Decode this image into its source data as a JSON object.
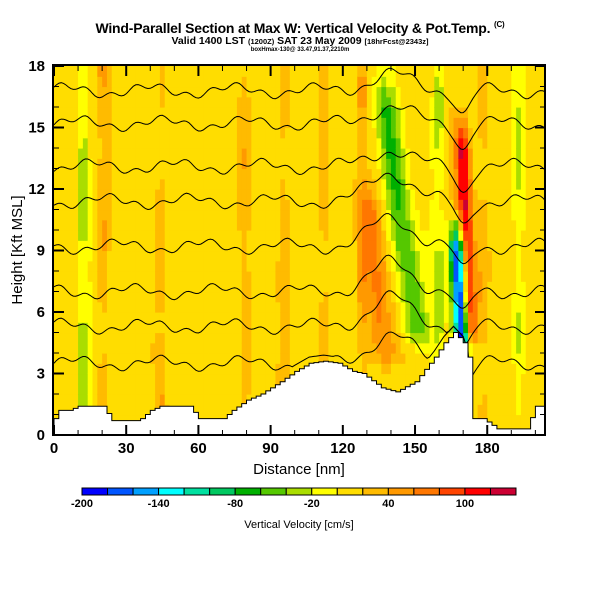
{
  "title": {
    "main": "Wind-Parallel Section at Max W: Vertical Velocity & Pot.Temp.",
    "copyright": "(C)",
    "valid_prefix": "Valid 1400 LST",
    "valid_z": "(1200Z)",
    "valid_date": "SAT 23 May 2009",
    "forecast": "[18hrFcst@2343z]",
    "subline": "boxHmax-130@ 33.47,91.37,2210m"
  },
  "chart_data": {
    "type": "heatmap",
    "title": "Wind-Parallel Section at Max W: Vertical Velocity & Pot.Temp.",
    "xlabel": "Distance [nm]",
    "ylabel": "Height [Kft MSL]",
    "xlim": [
      0,
      204
    ],
    "ylim": [
      0,
      18
    ],
    "x_ticks": [
      "0",
      "30",
      "60",
      "90",
      "120",
      "150",
      "180"
    ],
    "y_ticks": [
      "0",
      "3",
      "6",
      "9",
      "12",
      "15",
      "18"
    ],
    "x_tick_values": [
      0,
      30,
      60,
      90,
      120,
      150,
      180
    ],
    "y_tick_values": [
      0,
      3,
      6,
      9,
      12,
      15,
      18
    ],
    "colorbar": {
      "title": "Vertical Velocity [cm/s]",
      "min": -200,
      "max": 140,
      "step": 20,
      "labels": [
        "-200",
        "-140",
        "-80",
        "-20",
        "40",
        "100"
      ],
      "label_values": [
        -200,
        -140,
        -80,
        -20,
        40,
        100
      ],
      "colors": [
        "#0000ff",
        "#0055ff",
        "#00a0ff",
        "#00ffff",
        "#00e0a0",
        "#00c860",
        "#00b000",
        "#55c800",
        "#aadd00",
        "#ffff00",
        "#ffdd00",
        "#ffbb00",
        "#ff9900",
        "#ff7700",
        "#ff4400",
        "#ff0000",
        "#cc0033"
      ]
    },
    "background_value_cm_s": 10,
    "features": [
      {
        "name": "strong-updraft",
        "distance_nm": 172,
        "max_cm_s": 120,
        "height_range_kft": [
          5,
          14
        ]
      },
      {
        "name": "strong-downdraft",
        "distance_nm": 168,
        "min_cm_s": -200,
        "height_range_kft": [
          4.5,
          9
        ]
      },
      {
        "name": "downdraft-band",
        "distance_nm": 145,
        "min_cm_s": -60,
        "height_range_kft": [
          5,
          16
        ]
      },
      {
        "name": "updraft-band",
        "distance_nm": 135,
        "max_cm_s": 60,
        "height_range_kft": [
          4,
          11
        ]
      }
    ],
    "terrain_top_kft": [
      [
        0,
        0.8
      ],
      [
        2,
        1.2
      ],
      [
        6,
        1.2
      ],
      [
        10,
        1.4
      ],
      [
        20,
        1.4
      ],
      [
        24,
        0.7
      ],
      [
        35,
        0.7
      ],
      [
        40,
        1.2
      ],
      [
        44,
        1.4
      ],
      [
        56,
        1.4
      ],
      [
        60,
        0.8
      ],
      [
        70,
        0.8
      ],
      [
        74,
        1.2
      ],
      [
        80,
        1.7
      ],
      [
        86,
        2.0
      ],
      [
        94,
        2.6
      ],
      [
        100,
        3.1
      ],
      [
        106,
        3.5
      ],
      [
        112,
        3.6
      ],
      [
        118,
        3.5
      ],
      [
        124,
        3.1
      ],
      [
        128,
        3.0
      ],
      [
        136,
        2.3
      ],
      [
        142,
        2.1
      ],
      [
        150,
        2.6
      ],
      [
        154,
        3.2
      ],
      [
        158,
        3.8
      ],
      [
        162,
        4.5
      ],
      [
        166,
        5.0
      ],
      [
        170,
        4.5
      ],
      [
        172,
        3.8
      ],
      [
        174,
        0.8
      ],
      [
        178,
        0.8
      ],
      [
        184,
        0.3
      ],
      [
        196,
        0.3
      ],
      [
        200,
        1.4
      ],
      [
        204,
        1.4
      ]
    ],
    "isentropes_kft_at_x0": [
      3.5,
      5.3,
      7.0,
      9.2,
      11.4,
      13.1,
      15.2,
      16.8
    ]
  }
}
